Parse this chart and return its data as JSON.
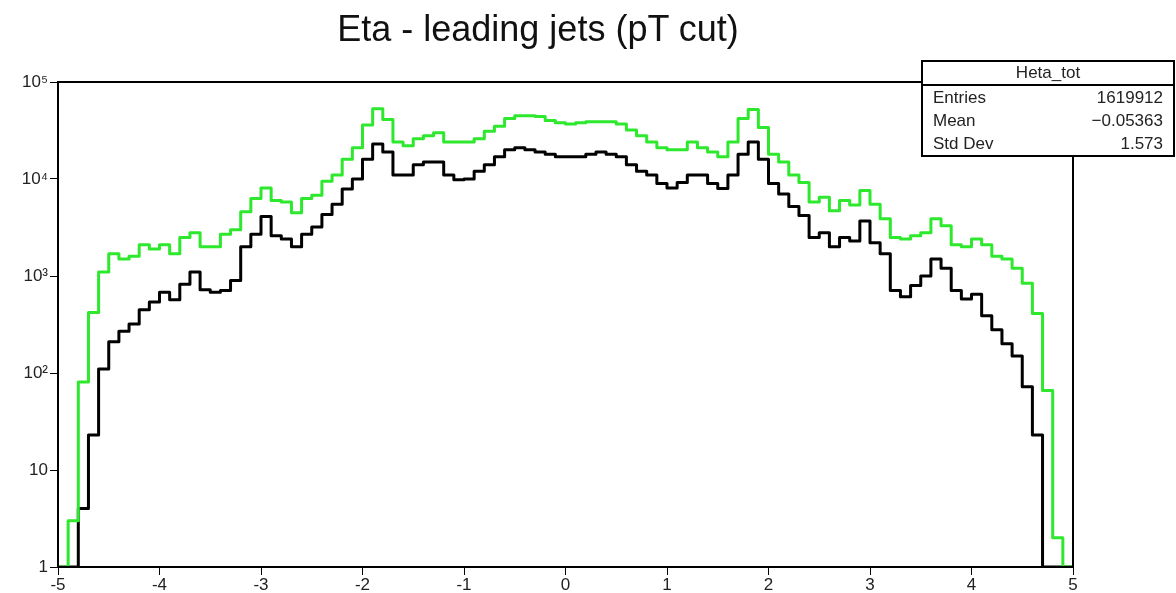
{
  "chart_data": {
    "type": "histogram",
    "title": "Eta - leading jets (pT cut)",
    "bins": [
      -5,
      -4.9,
      -4.8,
      -4.7,
      -4.6,
      -4.5,
      -4.4,
      -4.3,
      -4.2,
      -4.1,
      -4,
      -3.9,
      -3.8,
      -3.7,
      -3.6,
      -3.5,
      -3.4,
      -3.3,
      -3.2,
      -3.1,
      -3,
      -2.9,
      -2.8,
      -2.7,
      -2.6,
      -2.5,
      -2.4,
      -2.3,
      -2.2,
      -2.1,
      -2,
      -1.9,
      -1.8,
      -1.7,
      -1.6,
      -1.5,
      -1.4,
      -1.3,
      -1.2,
      -1.1,
      -1,
      -0.9,
      -0.8,
      -0.7,
      -0.6,
      -0.5,
      -0.4,
      -0.3,
      -0.2,
      -0.1,
      0,
      0.1,
      0.2,
      0.3,
      0.4,
      0.5,
      0.6,
      0.7,
      0.8,
      0.9,
      1,
      1.1,
      1.2,
      1.3,
      1.4,
      1.5,
      1.6,
      1.7,
      1.8,
      1.9,
      2,
      2.1,
      2.2,
      2.3,
      2.4,
      2.5,
      2.6,
      2.7,
      2.8,
      2.9,
      3,
      3.1,
      3.2,
      3.3,
      3.4,
      3.5,
      3.6,
      3.7,
      3.8,
      3.9,
      4,
      4.1,
      4.2,
      4.3,
      4.4,
      4.5,
      4.6,
      4.7,
      4.8,
      4.9,
      5
    ],
    "series": [
      {
        "color": "#2ee82e",
        "values": [
          null,
          3,
          81,
          420,
          1100,
          1700,
          1500,
          1600,
          2100,
          1900,
          2100,
          1700,
          2500,
          2800,
          2000,
          2000,
          2700,
          3000,
          4600,
          6300,
          8100,
          6000,
          5800,
          4500,
          6300,
          6800,
          9500,
          11000,
          16000,
          21000,
          36000,
          53000,
          41000,
          24000,
          22000,
          26000,
          28000,
          30000,
          24000,
          24000,
          24000,
          26000,
          31000,
          35000,
          42000,
          45000,
          45000,
          44000,
          40000,
          38000,
          37000,
          38000,
          39000,
          39000,
          39000,
          37000,
          32000,
          28000,
          24000,
          21000,
          20000,
          20000,
          24000,
          21000,
          19000,
          17000,
          24000,
          42000,
          52000,
          34000,
          18000,
          15000,
          11000,
          9200,
          5800,
          6500,
          4700,
          6000,
          5400,
          7600,
          5500,
          3900,
          2500,
          2400,
          2600,
          2800,
          3900,
          3300,
          2100,
          2000,
          2400,
          2100,
          1600,
          1500,
          1200,
          840,
          410,
          66,
          2,
          null
        ]
      },
      {
        "color": "#000000",
        "values": [
          null,
          null,
          4,
          23,
          110,
          210,
          270,
          320,
          450,
          540,
          680,
          570,
          820,
          1100,
          720,
          680,
          710,
          900,
          2000,
          2700,
          4100,
          2600,
          2400,
          2000,
          2700,
          3200,
          4300,
          5500,
          7900,
          10000,
          16000,
          23000,
          19000,
          11000,
          11000,
          14000,
          15000,
          15000,
          11000,
          9800,
          10000,
          12000,
          14000,
          17000,
          20000,
          21000,
          20000,
          19000,
          18000,
          17000,
          17000,
          17000,
          18000,
          19000,
          18000,
          17000,
          14000,
          12000,
          11000,
          9000,
          8100,
          9200,
          11000,
          11000,
          9000,
          8000,
          11000,
          18000,
          24000,
          16000,
          9000,
          7000,
          5200,
          4200,
          2500,
          2800,
          2000,
          2500,
          2300,
          3700,
          2200,
          1700,
          710,
          610,
          800,
          1000,
          1500,
          1200,
          710,
          580,
          650,
          390,
          280,
          200,
          150,
          72,
          23,
          null,
          null,
          null
        ]
      }
    ],
    "xlim": [
      -5,
      5
    ],
    "xticks": [
      -5,
      -4,
      -3,
      -2,
      -1,
      0,
      1,
      2,
      3,
      4,
      5
    ],
    "ylim": [
      1,
      100000
    ],
    "yticks": [
      1,
      10,
      {
        "value": 100,
        "label": "10²"
      },
      {
        "value": 1000,
        "label": "10³"
      },
      {
        "value": 10000,
        "label": "10⁴"
      },
      {
        "value": 100000,
        "label": "10⁵"
      }
    ],
    "log": true,
    "grid": false,
    "annotations": [
      "Heta_tot",
      "Entries",
      "1619912",
      "Mean",
      "−0.05363",
      "Std Dev",
      "1.573"
    ]
  }
}
